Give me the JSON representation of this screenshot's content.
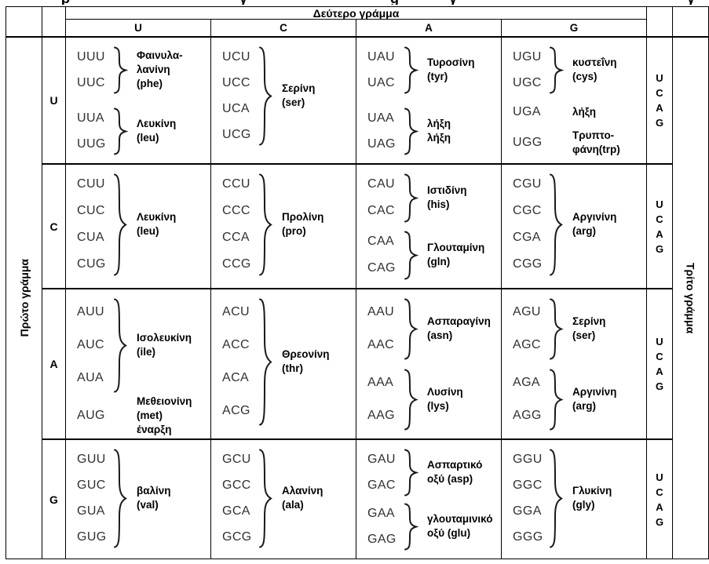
{
  "axes": {
    "second": "Δεύτερο γράμμα",
    "first": "Πρώτο γράμμα",
    "third": "Τρίτο γράμμα"
  },
  "second_letters": [
    "U",
    "C",
    "A",
    "G"
  ],
  "first_letters": [
    "U",
    "C",
    "A",
    "G"
  ],
  "third_letters": [
    "U",
    "C",
    "A",
    "G"
  ],
  "top_remnant_glyphs": [
    "ρ",
    "γ",
    "g",
    "γ",
    "γ"
  ],
  "rows": [
    {
      "first_letter": "U",
      "cells": [
        {
          "groups": [
            {
              "codons": [
                "UUU",
                "UUC"
              ],
              "brace": true,
              "label": "Φαινυλα-\nλανίνη\n(phe)"
            },
            {
              "codons": [
                "UUA",
                "UUG"
              ],
              "brace": true,
              "label": "Λευκίνη\n(leu)"
            }
          ]
        },
        {
          "groups": [
            {
              "codons": [
                "UCU",
                "UCC",
                "UCA",
                "UCG"
              ],
              "brace": true,
              "label": "Σερίνη\n(ser)"
            }
          ]
        },
        {
          "groups": [
            {
              "codons": [
                "UAU",
                "UAC"
              ],
              "brace": true,
              "label": "Τυροσίνη\n(tyr)"
            },
            {
              "codons": [
                "UAA",
                "UAG"
              ],
              "brace": true,
              "label": "λήξη\nλήξη"
            }
          ]
        },
        {
          "groups": [
            {
              "codons": [
                "UGU",
                "UGC"
              ],
              "brace": true,
              "label": "κυστεΐνη\n(cys)"
            },
            {
              "codons": [
                "UGA"
              ],
              "brace": false,
              "label": "λήξη"
            },
            {
              "codons": [
                "UGG"
              ],
              "brace": false,
              "label": "Τρυπτο-\nφάνη(trp)"
            }
          ]
        }
      ]
    },
    {
      "first_letter": "C",
      "cells": [
        {
          "groups": [
            {
              "codons": [
                "CUU",
                "CUC",
                "CUA",
                "CUG"
              ],
              "brace": true,
              "label": "Λευκίνη\n(leu)"
            }
          ]
        },
        {
          "groups": [
            {
              "codons": [
                "CCU",
                "CCC",
                "CCA",
                "CCG"
              ],
              "brace": true,
              "label": "Προλίνη\n(pro)"
            }
          ]
        },
        {
          "groups": [
            {
              "codons": [
                "CAU",
                "CAC"
              ],
              "brace": true,
              "label": "Ιστιδίνη\n(his)"
            },
            {
              "codons": [
                "CAA",
                "CAG"
              ],
              "brace": true,
              "label": "Γλουταμίνη\n(gln)"
            }
          ]
        },
        {
          "groups": [
            {
              "codons": [
                "CGU",
                "CGC",
                "CGA",
                "CGG"
              ],
              "brace": true,
              "label": "Αργινίνη\n(arg)"
            }
          ]
        }
      ]
    },
    {
      "first_letter": "A",
      "cells": [
        {
          "groups": [
            {
              "codons": [
                "AUU",
                "AUC",
                "AUA"
              ],
              "brace": true,
              "label": "Ισολευκίνη\n(ile)"
            },
            {
              "codons": [
                "AUG"
              ],
              "brace": false,
              "label": "Μεθειονίνη\n(met)\nέναρξη"
            }
          ]
        },
        {
          "groups": [
            {
              "codons": [
                "ACU",
                "ACC",
                "ACA",
                "ACG"
              ],
              "brace": true,
              "label": "Θρεονίνη\n(thr)"
            }
          ]
        },
        {
          "groups": [
            {
              "codons": [
                "AAU",
                "AAC"
              ],
              "brace": true,
              "label": "Ασπαραγίνη\n(asn)"
            },
            {
              "codons": [
                "AAA",
                "AAG"
              ],
              "brace": true,
              "label": "Λυσίνη\n(lys)"
            }
          ]
        },
        {
          "groups": [
            {
              "codons": [
                "AGU",
                "AGC"
              ],
              "brace": true,
              "label": "Σερίνη\n(ser)"
            },
            {
              "codons": [
                "AGA",
                "AGG"
              ],
              "brace": true,
              "label": "Αργινίνη\n(arg)"
            }
          ]
        }
      ]
    },
    {
      "first_letter": "G",
      "cells": [
        {
          "groups": [
            {
              "codons": [
                "GUU",
                "GUC",
                "GUA",
                "GUG"
              ],
              "brace": true,
              "label": "βαλίνη\n(val)"
            }
          ]
        },
        {
          "groups": [
            {
              "codons": [
                "GCU",
                "GCC",
                "GCA",
                "GCG"
              ],
              "brace": true,
              "label": "Αλανίνη\n(ala)"
            }
          ]
        },
        {
          "groups": [
            {
              "codons": [
                "GAU",
                "GAC"
              ],
              "brace": true,
              "label": "Ασπαρτικό\nοξύ (asp)"
            },
            {
              "codons": [
                "GAA",
                "GAG"
              ],
              "brace": true,
              "label": "γλουταμινικό\nοξύ (glu)"
            }
          ]
        },
        {
          "groups": [
            {
              "codons": [
                "GGU",
                "GGC",
                "GGA",
                "GGG"
              ],
              "brace": true,
              "label": "Γλυκίνη\n(gly)"
            }
          ]
        }
      ]
    }
  ]
}
